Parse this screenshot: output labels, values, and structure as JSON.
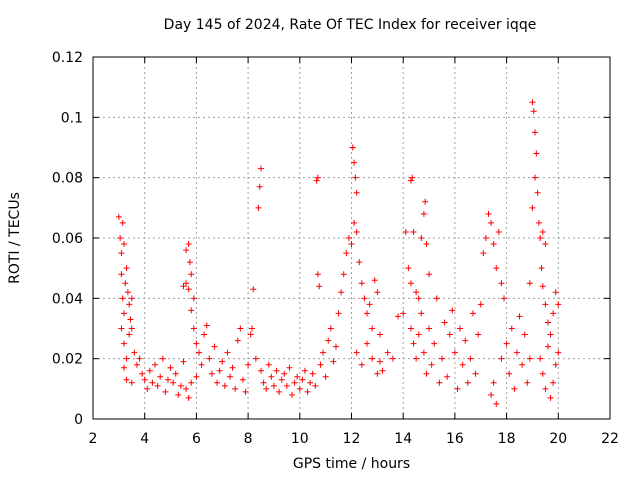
{
  "chart_data": {
    "type": "scatter",
    "title": "Day 145 of 2024, Rate Of TEC Index for receiver iqqe",
    "xlabel": "GPS time / hours",
    "ylabel": "ROTI / TECUs",
    "xlim": [
      2,
      22
    ],
    "ylim": [
      0,
      0.12
    ],
    "xticks": [
      2,
      4,
      6,
      8,
      10,
      12,
      14,
      16,
      18,
      20,
      22
    ],
    "yticks": [
      0,
      0.02,
      0.04,
      0.06,
      0.08,
      0.1,
      0.12
    ],
    "xtick_labels": [
      "2",
      "4",
      "6",
      "8",
      "10",
      "12",
      "14",
      "16",
      "18",
      "20",
      "22"
    ],
    "ytick_labels": [
      "0",
      "0.02",
      "0.04",
      "0.06",
      "0.08",
      "0.1",
      "0.12"
    ],
    "grid": true,
    "marker": "+",
    "color": "#ff0000",
    "series": [
      {
        "name": "ROTI",
        "points": [
          [
            3.0,
            0.067
          ],
          [
            3.05,
            0.06
          ],
          [
            3.1,
            0.055
          ],
          [
            3.15,
            0.065
          ],
          [
            3.2,
            0.058
          ],
          [
            3.1,
            0.048
          ],
          [
            3.15,
            0.04
          ],
          [
            3.2,
            0.035
          ],
          [
            3.25,
            0.045
          ],
          [
            3.3,
            0.05
          ],
          [
            3.35,
            0.042
          ],
          [
            3.4,
            0.038
          ],
          [
            3.45,
            0.033
          ],
          [
            3.5,
            0.04
          ],
          [
            3.1,
            0.03
          ],
          [
            3.2,
            0.025
          ],
          [
            3.3,
            0.02
          ],
          [
            3.4,
            0.028
          ],
          [
            3.5,
            0.03
          ],
          [
            3.6,
            0.022
          ],
          [
            3.7,
            0.018
          ],
          [
            3.2,
            0.017
          ],
          [
            3.3,
            0.013
          ],
          [
            3.5,
            0.012
          ],
          [
            3.8,
            0.02
          ],
          [
            3.9,
            0.015
          ],
          [
            4.0,
            0.013
          ],
          [
            4.1,
            0.01
          ],
          [
            4.2,
            0.016
          ],
          [
            4.3,
            0.012
          ],
          [
            4.4,
            0.018
          ],
          [
            4.5,
            0.011
          ],
          [
            4.6,
            0.014
          ],
          [
            4.7,
            0.02
          ],
          [
            4.8,
            0.009
          ],
          [
            4.9,
            0.013
          ],
          [
            5.0,
            0.017
          ],
          [
            5.1,
            0.012
          ],
          [
            5.2,
            0.015
          ],
          [
            5.3,
            0.008
          ],
          [
            5.4,
            0.011
          ],
          [
            5.5,
            0.019
          ],
          [
            5.6,
            0.056
          ],
          [
            5.7,
            0.058
          ],
          [
            5.75,
            0.052
          ],
          [
            5.8,
            0.048
          ],
          [
            5.6,
            0.045
          ],
          [
            5.7,
            0.043
          ],
          [
            5.9,
            0.04
          ],
          [
            5.5,
            0.044
          ],
          [
            5.8,
            0.036
          ],
          [
            5.9,
            0.03
          ],
          [
            6.0,
            0.025
          ],
          [
            5.6,
            0.01
          ],
          [
            5.7,
            0.007
          ],
          [
            5.8,
            0.012
          ],
          [
            6.0,
            0.014
          ],
          [
            6.1,
            0.022
          ],
          [
            6.2,
            0.018
          ],
          [
            6.3,
            0.028
          ],
          [
            6.4,
            0.031
          ],
          [
            6.5,
            0.02
          ],
          [
            6.6,
            0.015
          ],
          [
            6.7,
            0.024
          ],
          [
            6.8,
            0.012
          ],
          [
            6.9,
            0.016
          ],
          [
            7.0,
            0.019
          ],
          [
            7.1,
            0.011
          ],
          [
            7.2,
            0.022
          ],
          [
            7.3,
            0.014
          ],
          [
            7.4,
            0.017
          ],
          [
            7.5,
            0.01
          ],
          [
            7.6,
            0.026
          ],
          [
            7.7,
            0.03
          ],
          [
            7.8,
            0.013
          ],
          [
            7.9,
            0.009
          ],
          [
            8.0,
            0.018
          ],
          [
            8.1,
            0.028
          ],
          [
            8.15,
            0.03
          ],
          [
            8.2,
            0.043
          ],
          [
            8.3,
            0.02
          ],
          [
            8.4,
            0.07
          ],
          [
            8.45,
            0.077
          ],
          [
            8.5,
            0.083
          ],
          [
            8.5,
            0.016
          ],
          [
            8.6,
            0.012
          ],
          [
            8.7,
            0.01
          ],
          [
            8.8,
            0.018
          ],
          [
            8.9,
            0.014
          ],
          [
            9.0,
            0.011
          ],
          [
            9.1,
            0.016
          ],
          [
            9.2,
            0.009
          ],
          [
            9.3,
            0.013
          ],
          [
            9.4,
            0.015
          ],
          [
            9.5,
            0.011
          ],
          [
            9.6,
            0.017
          ],
          [
            9.7,
            0.008
          ],
          [
            9.8,
            0.012
          ],
          [
            9.9,
            0.014
          ],
          [
            10.0,
            0.01
          ],
          [
            10.1,
            0.013
          ],
          [
            10.2,
            0.016
          ],
          [
            10.3,
            0.009
          ],
          [
            10.4,
            0.012
          ],
          [
            10.5,
            0.015
          ],
          [
            10.6,
            0.011
          ],
          [
            10.65,
            0.079
          ],
          [
            10.7,
            0.08
          ],
          [
            10.7,
            0.048
          ],
          [
            10.75,
            0.044
          ],
          [
            10.8,
            0.018
          ],
          [
            10.9,
            0.022
          ],
          [
            11.0,
            0.014
          ],
          [
            11.1,
            0.026
          ],
          [
            11.2,
            0.03
          ],
          [
            11.3,
            0.019
          ],
          [
            11.4,
            0.024
          ],
          [
            11.5,
            0.035
          ],
          [
            11.6,
            0.042
          ],
          [
            11.7,
            0.048
          ],
          [
            11.8,
            0.055
          ],
          [
            11.9,
            0.06
          ],
          [
            12.0,
            0.058
          ],
          [
            12.05,
            0.09
          ],
          [
            12.1,
            0.085
          ],
          [
            12.15,
            0.08
          ],
          [
            12.2,
            0.075
          ],
          [
            12.1,
            0.065
          ],
          [
            12.2,
            0.062
          ],
          [
            12.3,
            0.052
          ],
          [
            12.4,
            0.045
          ],
          [
            12.5,
            0.04
          ],
          [
            12.6,
            0.035
          ],
          [
            12.7,
            0.038
          ],
          [
            12.8,
            0.03
          ],
          [
            12.9,
            0.046
          ],
          [
            13.0,
            0.042
          ],
          [
            13.1,
            0.028
          ],
          [
            12.2,
            0.022
          ],
          [
            12.4,
            0.018
          ],
          [
            12.6,
            0.025
          ],
          [
            12.8,
            0.02
          ],
          [
            13.0,
            0.015
          ],
          [
            13.1,
            0.019
          ],
          [
            13.2,
            0.016
          ],
          [
            13.4,
            0.022
          ],
          [
            13.6,
            0.02
          ],
          [
            13.8,
            0.034
          ],
          [
            14.0,
            0.035
          ],
          [
            14.1,
            0.062
          ],
          [
            14.3,
            0.079
          ],
          [
            14.35,
            0.08
          ],
          [
            14.4,
            0.062
          ],
          [
            14.2,
            0.05
          ],
          [
            14.3,
            0.045
          ],
          [
            14.5,
            0.042
          ],
          [
            14.6,
            0.04
          ],
          [
            14.7,
            0.06
          ],
          [
            14.8,
            0.068
          ],
          [
            14.85,
            0.072
          ],
          [
            14.9,
            0.058
          ],
          [
            15.0,
            0.048
          ],
          [
            14.3,
            0.03
          ],
          [
            14.4,
            0.025
          ],
          [
            14.5,
            0.02
          ],
          [
            14.6,
            0.028
          ],
          [
            14.7,
            0.035
          ],
          [
            14.8,
            0.022
          ],
          [
            14.9,
            0.015
          ],
          [
            15.0,
            0.03
          ],
          [
            15.1,
            0.018
          ],
          [
            15.2,
            0.025
          ],
          [
            15.3,
            0.04
          ],
          [
            15.4,
            0.012
          ],
          [
            15.5,
            0.02
          ],
          [
            15.6,
            0.032
          ],
          [
            15.7,
            0.014
          ],
          [
            15.8,
            0.028
          ],
          [
            15.9,
            0.036
          ],
          [
            16.0,
            0.022
          ],
          [
            16.1,
            0.01
          ],
          [
            16.2,
            0.03
          ],
          [
            16.3,
            0.018
          ],
          [
            16.4,
            0.026
          ],
          [
            16.5,
            0.012
          ],
          [
            16.6,
            0.02
          ],
          [
            16.7,
            0.035
          ],
          [
            16.8,
            0.015
          ],
          [
            16.9,
            0.028
          ],
          [
            17.0,
            0.038
          ],
          [
            17.1,
            0.055
          ],
          [
            17.2,
            0.06
          ],
          [
            17.3,
            0.068
          ],
          [
            17.4,
            0.065
          ],
          [
            17.5,
            0.058
          ],
          [
            17.6,
            0.05
          ],
          [
            17.7,
            0.062
          ],
          [
            17.8,
            0.045
          ],
          [
            17.9,
            0.04
          ],
          [
            17.4,
            0.008
          ],
          [
            17.5,
            0.012
          ],
          [
            17.6,
            0.005
          ],
          [
            17.8,
            0.02
          ],
          [
            18.0,
            0.025
          ],
          [
            18.1,
            0.015
          ],
          [
            18.2,
            0.03
          ],
          [
            18.3,
            0.01
          ],
          [
            18.4,
            0.022
          ],
          [
            18.5,
            0.034
          ],
          [
            18.6,
            0.018
          ],
          [
            18.7,
            0.028
          ],
          [
            18.8,
            0.012
          ],
          [
            18.9,
            0.02
          ],
          [
            18.9,
            0.045
          ],
          [
            19.0,
            0.07
          ],
          [
            19.0,
            0.105
          ],
          [
            19.05,
            0.102
          ],
          [
            19.1,
            0.095
          ],
          [
            19.15,
            0.088
          ],
          [
            19.1,
            0.08
          ],
          [
            19.2,
            0.075
          ],
          [
            19.25,
            0.065
          ],
          [
            19.3,
            0.06
          ],
          [
            19.4,
            0.062
          ],
          [
            19.5,
            0.058
          ],
          [
            19.35,
            0.05
          ],
          [
            19.4,
            0.044
          ],
          [
            19.5,
            0.038
          ],
          [
            19.6,
            0.032
          ],
          [
            19.7,
            0.028
          ],
          [
            19.8,
            0.035
          ],
          [
            19.9,
            0.042
          ],
          [
            20.0,
            0.038
          ],
          [
            19.3,
            0.02
          ],
          [
            19.4,
            0.015
          ],
          [
            19.5,
            0.01
          ],
          [
            19.6,
            0.024
          ],
          [
            19.7,
            0.007
          ],
          [
            19.8,
            0.012
          ],
          [
            19.9,
            0.018
          ],
          [
            20.0,
            0.022
          ]
        ]
      }
    ]
  }
}
